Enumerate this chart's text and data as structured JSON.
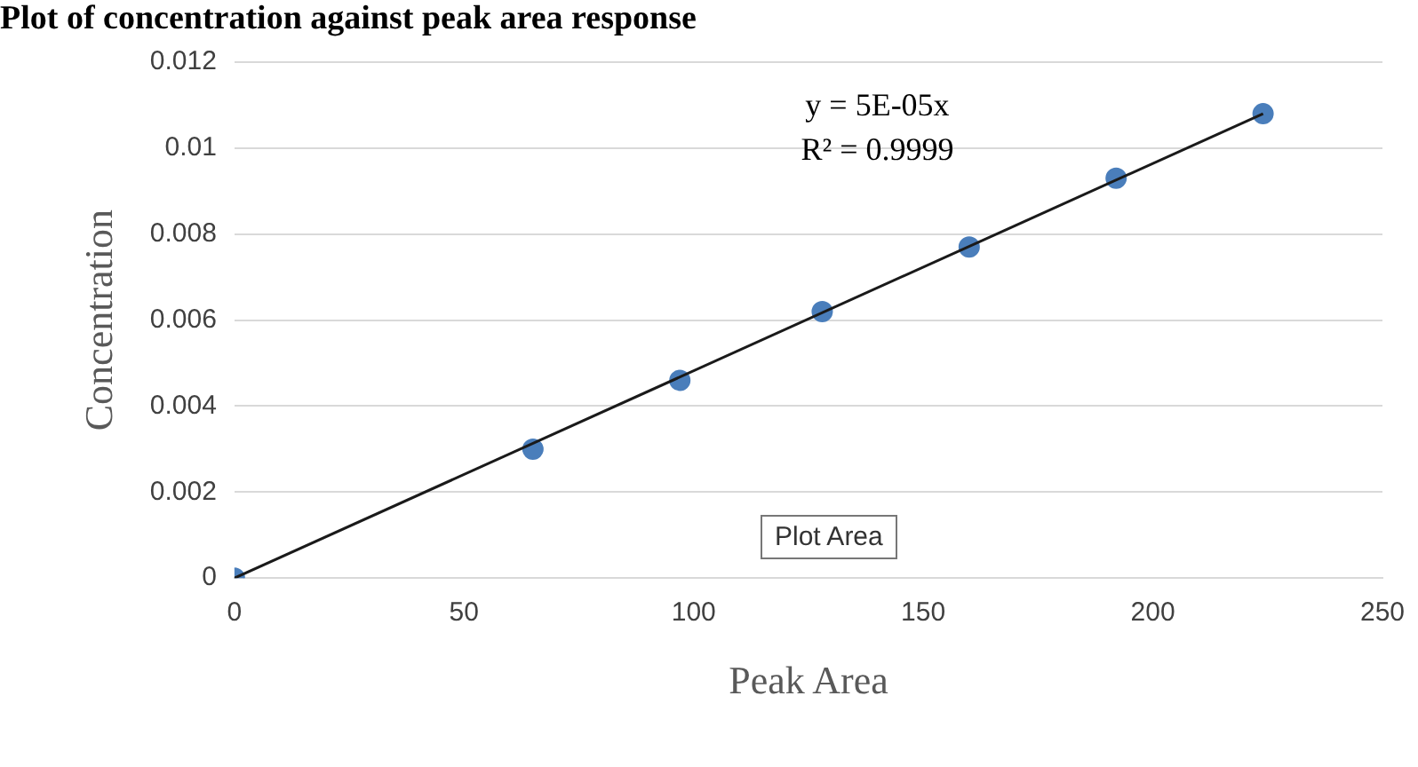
{
  "chart_data": {
    "type": "scatter",
    "title": "Plot of concentration against peak area response",
    "xlabel": "Peak Area",
    "ylabel": "Concentration",
    "x": [
      0,
      65,
      97,
      128,
      160,
      192,
      224
    ],
    "series": [
      {
        "color": "#4a7ebb",
        "values": [
          0,
          0.003,
          0.0046,
          0.0062,
          0.0077,
          0.0093,
          0.0108
        ]
      },
      {
        "type": "line",
        "color": "#1a1a1a",
        "x": [
          0,
          224
        ],
        "values": [
          0,
          0.0108
        ],
        "marker": "none"
      }
    ],
    "xlim": [
      0,
      250
    ],
    "xticks": [
      0,
      50,
      100,
      150,
      200,
      250
    ],
    "ylim": [
      0,
      0.012
    ],
    "yticks": [
      0,
      0.002,
      0.004,
      0.006,
      0.008,
      0.01,
      0.012
    ],
    "grid": "y",
    "marker": "circle",
    "legend": false,
    "annotations": [
      "y = 5E-05x",
      "R² = 0.9999",
      "Plot Area"
    ]
  }
}
